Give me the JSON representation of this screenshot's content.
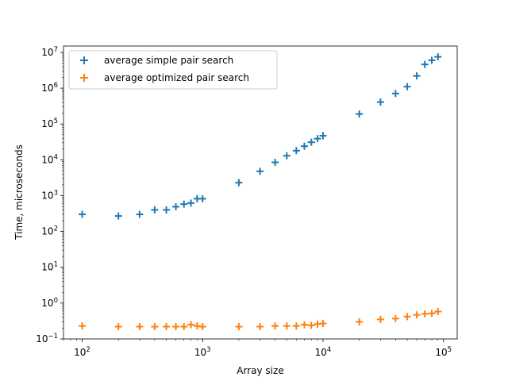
{
  "chart_data": {
    "type": "scatter",
    "title": "",
    "xlabel": "Array size",
    "ylabel": "Time, microseconds",
    "xscale": "log",
    "yscale": "log",
    "xlim": [
      70,
      130000
    ],
    "ylim": [
      0.1,
      15000000
    ],
    "grid": false,
    "legend_position": "top-left",
    "xticks": [
      {
        "value": 100,
        "base": "10",
        "exp": "2"
      },
      {
        "value": 1000,
        "base": "10",
        "exp": "3"
      },
      {
        "value": 10000,
        "base": "10",
        "exp": "4"
      },
      {
        "value": 100000,
        "base": "10",
        "exp": "5"
      }
    ],
    "yticks": [
      {
        "value": 0.1,
        "base": "10",
        "exp": "−1"
      },
      {
        "value": 1,
        "base": "10",
        "exp": "0"
      },
      {
        "value": 10,
        "base": "10",
        "exp": "1"
      },
      {
        "value": 100,
        "base": "10",
        "exp": "2"
      },
      {
        "value": 1000,
        "base": "10",
        "exp": "3"
      },
      {
        "value": 10000,
        "base": "10",
        "exp": "4"
      },
      {
        "value": 100000,
        "base": "10",
        "exp": "5"
      },
      {
        "value": 1000000,
        "base": "10",
        "exp": "6"
      },
      {
        "value": 10000000,
        "base": "10",
        "exp": "7"
      }
    ],
    "x": [
      100,
      200,
      300,
      400,
      500,
      600,
      700,
      800,
      900,
      1000,
      2000,
      3000,
      4000,
      5000,
      6000,
      7000,
      8000,
      9000,
      10000,
      20000,
      30000,
      40000,
      50000,
      60000,
      70000,
      80000,
      90000
    ],
    "series": [
      {
        "name": "average simple pair search",
        "color": "#1f77b4",
        "marker": "plus",
        "values": [
          300,
          270,
          300,
          400,
          400,
          490,
          580,
          620,
          820,
          820,
          2300,
          4800,
          8500,
          13000,
          18000,
          24000,
          31000,
          39000,
          47000,
          190000,
          410000,
          710000,
          1100000,
          2200000,
          4600000,
          6000000,
          7500000
        ]
      },
      {
        "name": "average optimized pair search",
        "color": "#ff7f0e",
        "marker": "plus",
        "values": [
          0.23,
          0.22,
          0.22,
          0.22,
          0.22,
          0.22,
          0.22,
          0.25,
          0.23,
          0.22,
          0.22,
          0.22,
          0.23,
          0.23,
          0.23,
          0.25,
          0.24,
          0.26,
          0.27,
          0.3,
          0.35,
          0.37,
          0.42,
          0.47,
          0.5,
          0.52,
          0.58
        ]
      }
    ]
  }
}
